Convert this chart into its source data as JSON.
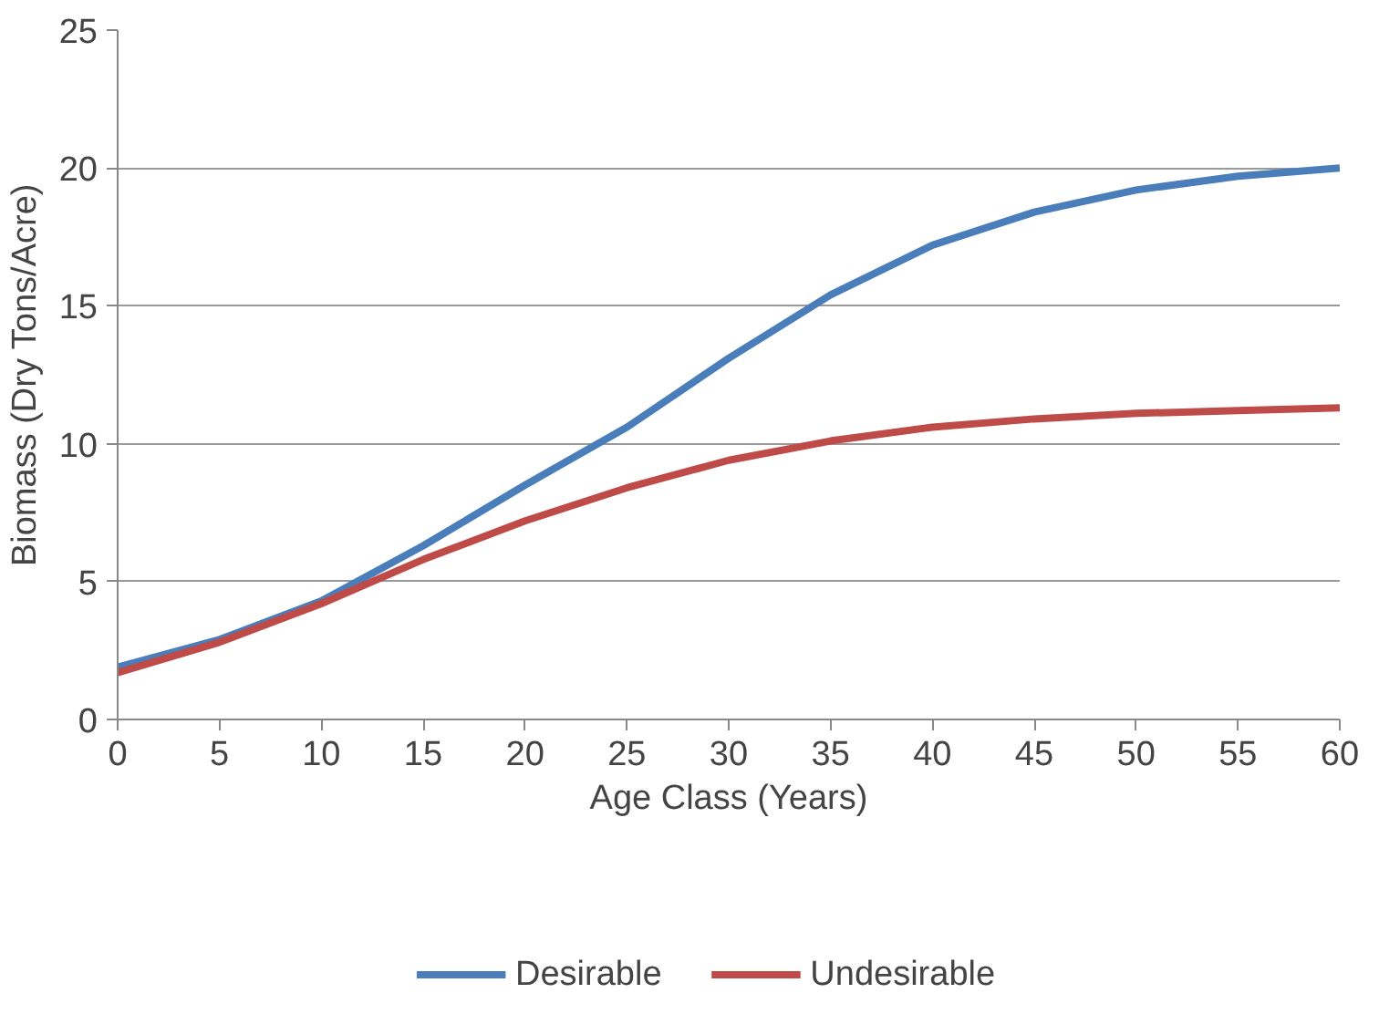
{
  "chart_data": {
    "type": "line",
    "xlabel": "Age Class (Years)",
    "ylabel": "Biomass (Dry Tons/Acre)",
    "x": [
      0,
      5,
      10,
      15,
      20,
      25,
      30,
      35,
      40,
      45,
      50,
      55,
      60
    ],
    "series": [
      {
        "name": "Desirable",
        "color": "#4a7ebb",
        "values": [
          1.9,
          2.9,
          4.3,
          6.3,
          8.5,
          10.6,
          13.1,
          15.4,
          17.2,
          18.4,
          19.2,
          19.7,
          20.0
        ]
      },
      {
        "name": "Undesirable",
        "color": "#be4b48",
        "values": [
          1.7,
          2.8,
          4.2,
          5.8,
          7.2,
          8.4,
          9.4,
          10.1,
          10.6,
          10.9,
          11.1,
          11.2,
          11.3
        ]
      }
    ],
    "xlim": [
      0,
      60
    ],
    "xticks": [
      0,
      5,
      10,
      15,
      20,
      25,
      30,
      35,
      40,
      45,
      50,
      55,
      60
    ],
    "ylim": [
      0,
      25
    ],
    "yticks": [
      0,
      5,
      10,
      15,
      20,
      25
    ],
    "grid": "y",
    "legend": "bottom",
    "marker": "none",
    "line_style": "solid"
  }
}
